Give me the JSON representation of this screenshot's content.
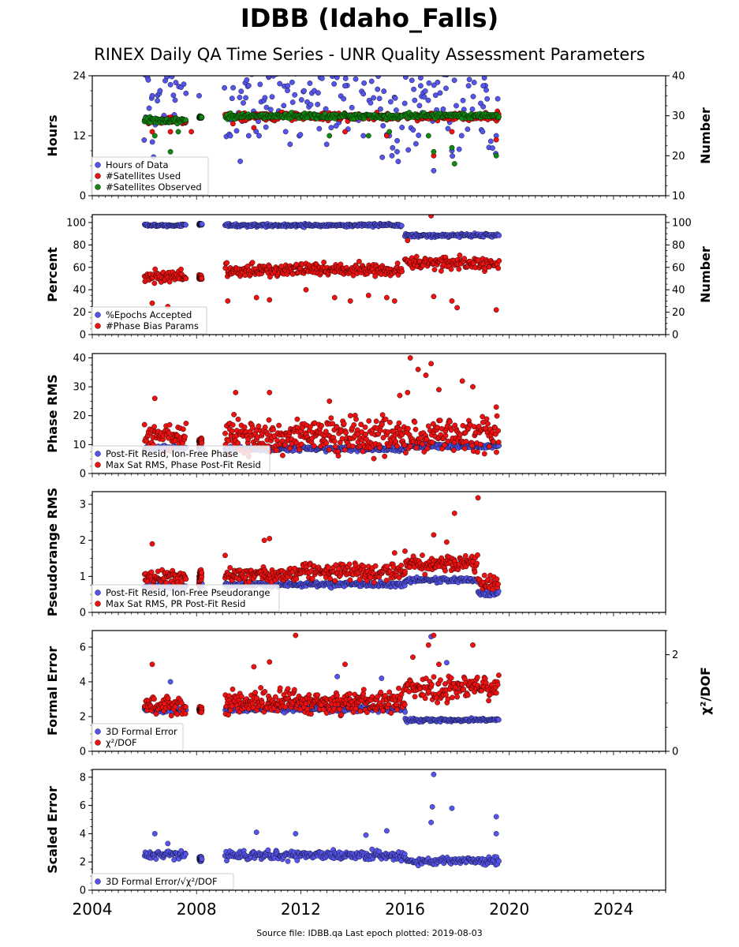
{
  "header": {
    "title": "IDBB (Idaho_Falls)",
    "subtitle": "RINEX Daily QA Time Series - UNR Quality Assessment Parameters"
  },
  "footer": {
    "source_text": "Source file: IDBB.qa Last epoch plotted: 2019-08-03"
  },
  "colors": {
    "blue": "#5555ee",
    "red": "#ee1111",
    "green": "#118811",
    "edge": "#000000"
  },
  "chart_data": [
    {
      "type": "scatter",
      "ylabel": "Hours",
      "ylabel_right": "Number",
      "xlim": [
        2004,
        2026
      ],
      "ylim": [
        0,
        24
      ],
      "ylim_right": [
        10,
        40
      ],
      "yticks": [
        0,
        12,
        24
      ],
      "yticks_right": [
        10,
        20,
        30,
        40
      ],
      "legend_position": "lower-left",
      "series": [
        {
          "name": "Hours of Data",
          "color": "blue",
          "axis": "left",
          "pattern": [
            [
              2006.0,
              2007.6,
              24,
              22,
              0.5
            ],
            [
              2009.0,
              2019.6,
              24,
              22,
              0.6
            ]
          ],
          "points": [
            [
              2006.3,
              20
            ],
            [
              2006.5,
              19
            ],
            [
              2006.6,
              21
            ],
            [
              2006.8,
              23
            ],
            [
              2008.1,
              20
            ],
            [
              2009.3,
              12
            ],
            [
              2010.0,
              12
            ],
            [
              2010.4,
              12
            ],
            [
              2011.5,
              22
            ],
            [
              2013.7,
              22
            ],
            [
              2014.4,
              12
            ],
            [
              2015.2,
              16
            ],
            [
              2015.4,
              12
            ],
            [
              2015.5,
              8
            ],
            [
              2015.7,
              11
            ],
            [
              2016.6,
              22
            ],
            [
              2017.1,
              5
            ],
            [
              2017.8,
              9
            ],
            [
              2019.0,
              22
            ],
            [
              2019.5,
              12
            ]
          ]
        },
        {
          "name": "#Satellites Used",
          "color": "red",
          "axis": "right",
          "pattern": [
            [
              2006.0,
              2007.6,
              28.8,
              1.2,
              0.45
            ],
            [
              2009.1,
              2019.6,
              29.8,
              1.4,
              0.5
            ]
          ],
          "points": [
            [
              2006.3,
              26
            ],
            [
              2007.0,
              26
            ],
            [
              2007.8,
              26
            ],
            [
              2009.4,
              28
            ],
            [
              2010.2,
              27
            ],
            [
              2013.7,
              26
            ],
            [
              2015.3,
              25
            ],
            [
              2017.1,
              20
            ],
            [
              2017.8,
              26
            ],
            [
              2019.5,
              24
            ]
          ]
        },
        {
          "name": "#Satellites Observed",
          "color": "green",
          "axis": "right",
          "pattern": [
            [
              2006.0,
              2007.6,
              28.8,
              1.1,
              0.5
            ],
            [
              2008.1,
              2008.2,
              29.6,
              0.4,
              0.05
            ],
            [
              2009.1,
              2015.9,
              29.9,
              1.0,
              0.55
            ],
            [
              2016.0,
              2019.6,
              30.0,
              0.9,
              0.55
            ]
          ],
          "points": [
            [
              2006.4,
              25
            ],
            [
              2007.0,
              21
            ],
            [
              2007.3,
              26
            ],
            [
              2013.1,
              25
            ],
            [
              2014.6,
              25
            ],
            [
              2015.4,
              26
            ],
            [
              2016.9,
              25
            ],
            [
              2017.1,
              21
            ],
            [
              2017.8,
              22
            ],
            [
              2017.9,
              18
            ],
            [
              2019.5,
              20
            ]
          ]
        }
      ],
      "legend": [
        "Hours of Data",
        "#Satellites Used",
        "#Satellites Observed"
      ]
    },
    {
      "type": "scatter",
      "ylabel": "Percent",
      "ylabel_right": "Number",
      "xlim": [
        2004,
        2026
      ],
      "ylim": [
        0,
        107
      ],
      "ylim_right": [
        0,
        107
      ],
      "yticks": [
        0,
        20,
        40,
        60,
        80,
        100
      ],
      "yticks_right": [
        0,
        20,
        40,
        60,
        80,
        100
      ],
      "legend_position": "lower-left",
      "series": [
        {
          "name": "%Epochs Accepted",
          "color": "blue",
          "axis": "left",
          "pattern": [
            [
              2006.0,
              2007.6,
              97.5,
              1.5,
              0.5
            ],
            [
              2008.1,
              2008.2,
              98.5,
              1,
              0.05
            ],
            [
              2009.1,
              2015.9,
              97.5,
              2,
              0.5
            ],
            [
              2016.0,
              2019.6,
              88.5,
              2,
              0.5
            ]
          ],
          "points": []
        },
        {
          "name": "#Phase Bias Params",
          "color": "red",
          "axis": "right",
          "pattern": [
            [
              2006.0,
              2007.6,
              52,
              8,
              0.45
            ],
            [
              2008.1,
              2008.2,
              51,
              3,
              0.05
            ],
            [
              2009.1,
              2015.9,
              58,
              8,
              0.45
            ],
            [
              2016.0,
              2019.6,
              64,
              9,
              0.5
            ]
          ],
          "points": [
            [
              2006.3,
              28
            ],
            [
              2006.9,
              25
            ],
            [
              2009.2,
              30
            ],
            [
              2010.3,
              33
            ],
            [
              2010.8,
              31
            ],
            [
              2012.2,
              40
            ],
            [
              2013.3,
              33
            ],
            [
              2013.9,
              30
            ],
            [
              2014.6,
              35
            ],
            [
              2015.3,
              33
            ],
            [
              2015.6,
              30
            ],
            [
              2016.1,
              84
            ],
            [
              2017.0,
              106
            ],
            [
              2017.1,
              34
            ],
            [
              2017.8,
              30
            ],
            [
              2018.0,
              24
            ],
            [
              2019.5,
              22
            ]
          ]
        }
      ],
      "legend": [
        "%Epochs Accepted",
        "#Phase Bias Params"
      ]
    },
    {
      "type": "scatter",
      "ylabel": "Phase RMS",
      "xlim": [
        2004,
        2026
      ],
      "ylim": [
        0,
        41.5
      ],
      "yticks": [
        0,
        10,
        20,
        30,
        40
      ],
      "legend_position": "lower-left",
      "series": [
        {
          "name": "Post-Fit Resid, Ion-Free Phase",
          "color": "blue",
          "axis": "left",
          "pattern": [
            [
              2006.0,
              2007.6,
              8.8,
              1.2,
              0.5
            ],
            [
              2008.1,
              2008.2,
              9,
              1,
              0.05
            ],
            [
              2009.1,
              2016.0,
              8.6,
              1.2,
              0.5
            ],
            [
              2016.0,
              2019.6,
              9.5,
              1.2,
              0.5
            ]
          ],
          "points": []
        },
        {
          "name": "Max Sat RMS, Phase Post-Fit Resid",
          "color": "red",
          "axis": "left",
          "pattern": [
            [
              2006.0,
              2007.6,
              13,
              7,
              0.45
            ],
            [
              2008.1,
              2008.2,
              11,
              2,
              0.05
            ],
            [
              2009.1,
              2016.0,
              13,
              9,
              0.4
            ],
            [
              2016.0,
              2019.6,
              13,
              8,
              0.45
            ]
          ],
          "points": [
            [
              2006.4,
              26
            ],
            [
              2009.5,
              28
            ],
            [
              2010.8,
              28
            ],
            [
              2013.1,
              25
            ],
            [
              2015.8,
              27
            ],
            [
              2016.1,
              28
            ],
            [
              2016.2,
              40
            ],
            [
              2016.5,
              36
            ],
            [
              2016.8,
              34
            ],
            [
              2017.0,
              38
            ],
            [
              2017.3,
              29
            ],
            [
              2018.2,
              32
            ],
            [
              2018.6,
              30
            ],
            [
              2019.5,
              23
            ]
          ]
        }
      ],
      "legend": [
        "Post-Fit Resid, Ion-Free Phase",
        "Max Sat RMS, Phase Post-Fit Resid"
      ]
    },
    {
      "type": "scatter",
      "ylabel": "Pseudorange RMS",
      "xlim": [
        2004,
        2026
      ],
      "ylim": [
        0,
        3.35
      ],
      "yticks": [
        0,
        1,
        2,
        3
      ],
      "legend_position": "lower-left",
      "series": [
        {
          "name": "Post-Fit Resid, Ion-Free Pseudorange",
          "color": "blue",
          "axis": "left",
          "pattern": [
            [
              2006.0,
              2007.6,
              0.72,
              0.12,
              0.5
            ],
            [
              2008.1,
              2008.2,
              0.75,
              0.08,
              0.05
            ],
            [
              2009.1,
              2016.0,
              0.77,
              0.1,
              0.5
            ],
            [
              2016.0,
              2018.8,
              0.9,
              0.1,
              0.5
            ],
            [
              2018.8,
              2019.6,
              0.55,
              0.12,
              0.5
            ]
          ],
          "points": []
        },
        {
          "name": "Max Sat RMS, PR Post-Fit Resid",
          "color": "red",
          "axis": "left",
          "pattern": [
            [
              2006.0,
              2007.6,
              0.95,
              0.3,
              0.45
            ],
            [
              2008.1,
              2008.2,
              1.0,
              0.25,
              0.05
            ],
            [
              2009.1,
              2012.0,
              1.05,
              0.3,
              0.45
            ],
            [
              2012.0,
              2016.0,
              1.15,
              0.35,
              0.45
            ],
            [
              2016.0,
              2018.8,
              1.35,
              0.35,
              0.45
            ],
            [
              2018.8,
              2019.6,
              0.8,
              0.3,
              0.5
            ]
          ],
          "points": [
            [
              2006.3,
              1.9
            ],
            [
              2009.1,
              1.58
            ],
            [
              2010.6,
              2.0
            ],
            [
              2010.8,
              2.05
            ],
            [
              2015.6,
              1.65
            ],
            [
              2016.0,
              1.7
            ],
            [
              2017.1,
              2.15
            ],
            [
              2017.6,
              1.95
            ],
            [
              2017.9,
              2.75
            ],
            [
              2018.8,
              3.18
            ]
          ]
        }
      ],
      "legend": [
        "Post-Fit Resid, Ion-Free Pseudorange",
        "Max Sat RMS, PR Post-Fit Resid"
      ]
    },
    {
      "type": "scatter",
      "ylabel": "Formal Error",
      "ylabel_right": "χ²/DOF",
      "xlim": [
        2004,
        2026
      ],
      "ylim": [
        0,
        6.95
      ],
      "ylim_right": [
        0,
        2.5
      ],
      "yticks": [
        0,
        2,
        4,
        6
      ],
      "yticks_right": [
        0,
        2
      ],
      "legend_position": "lower-left",
      "series": [
        {
          "name": "3D Formal Error",
          "color": "blue",
          "axis": "left",
          "pattern": [
            [
              2006.0,
              2007.6,
              2.4,
              0.25,
              0.5
            ],
            [
              2008.1,
              2008.2,
              2.4,
              0.2,
              0.05
            ],
            [
              2009.1,
              2016.0,
              2.45,
              0.25,
              0.5
            ],
            [
              2016.0,
              2019.6,
              1.8,
              0.15,
              0.5
            ]
          ],
          "points": [
            [
              2007.0,
              4.0
            ],
            [
              2013.4,
              4.3
            ],
            [
              2015.1,
              4.2
            ],
            [
              2017.0,
              6.6
            ],
            [
              2017.6,
              5.1
            ]
          ]
        },
        {
          "name": "χ²/DOF",
          "color": "red",
          "axis": "right",
          "pattern": [
            [
              2006.0,
              2007.6,
              0.95,
              0.3,
              0.45
            ],
            [
              2008.1,
              2008.2,
              0.85,
              0.1,
              0.05
            ],
            [
              2009.1,
              2016.0,
              1.02,
              0.35,
              0.4
            ],
            [
              2016.0,
              2019.6,
              1.3,
              0.35,
              0.45
            ]
          ],
          "points": [
            [
              2006.3,
              1.8
            ],
            [
              2010.2,
              1.75
            ],
            [
              2010.8,
              1.85
            ],
            [
              2011.8,
              2.4
            ],
            [
              2013.7,
              1.8
            ],
            [
              2016.3,
              1.95
            ],
            [
              2016.9,
              2.2
            ],
            [
              2017.1,
              2.4
            ],
            [
              2017.3,
              1.8
            ],
            [
              2018.6,
              2.2
            ]
          ]
        }
      ],
      "legend": [
        "3D Formal Error",
        "χ²/DOF"
      ]
    },
    {
      "type": "scatter",
      "ylabel": "Scaled Error",
      "xlim": [
        2004,
        2026
      ],
      "ylim": [
        0,
        8.55
      ],
      "yticks": [
        0,
        2,
        4,
        6,
        8
      ],
      "xticks": [
        2004,
        2008,
        2012,
        2016,
        2020,
        2024
      ],
      "legend_position": "lower-left",
      "series": [
        {
          "name": "3D Formal Error/√χ²/DOF",
          "color": "blue",
          "axis": "left",
          "pattern": [
            [
              2006.0,
              2007.6,
              2.5,
              0.5,
              0.5
            ],
            [
              2008.1,
              2008.2,
              2.2,
              0.3,
              0.05
            ],
            [
              2009.1,
              2016.0,
              2.45,
              0.5,
              0.5
            ],
            [
              2016.0,
              2019.6,
              2.1,
              0.4,
              0.5
            ]
          ],
          "points": [
            [
              2006.4,
              4.0
            ],
            [
              2006.9,
              3.3
            ],
            [
              2010.3,
              4.1
            ],
            [
              2011.8,
              4.0
            ],
            [
              2014.5,
              3.9
            ],
            [
              2015.3,
              4.2
            ],
            [
              2017.0,
              4.8
            ],
            [
              2017.05,
              5.9
            ],
            [
              2017.1,
              8.2
            ],
            [
              2017.8,
              5.8
            ],
            [
              2019.5,
              5.2
            ],
            [
              2019.5,
              4.0
            ]
          ]
        }
      ],
      "legend": [
        "3D Formal Error/√χ²/DOF"
      ]
    }
  ]
}
